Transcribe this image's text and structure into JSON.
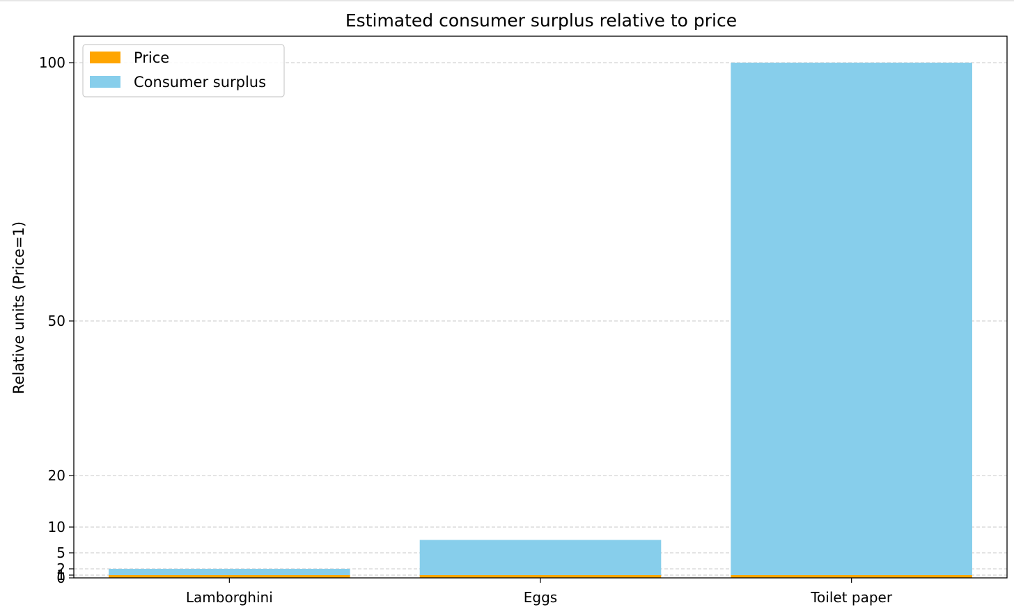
{
  "chart_data": {
    "type": "bar",
    "stacked": true,
    "title": "Estimated consumer surplus relative to price",
    "xlabel": "",
    "ylabel": "Relative units (Price=1)",
    "categories": [
      "Lamborghini",
      "Eggs",
      "Toilet paper"
    ],
    "series": [
      {
        "name": "Price",
        "values": [
          1,
          1,
          1
        ],
        "color": "#ffa500"
      },
      {
        "name": "Consumer surplus",
        "values": [
          1,
          6.5,
          99
        ],
        "color": "#87ceeb"
      }
    ],
    "yticks": [
      0,
      1,
      2,
      5,
      10,
      20,
      50,
      100
    ],
    "ytick_labels": [
      "0",
      "1",
      "2",
      "5",
      "10",
      "20",
      "50",
      "100"
    ],
    "ylim": [
      0,
      105
    ],
    "yscale": "symlog",
    "grid": "y dashed",
    "legend": "top-left"
  }
}
